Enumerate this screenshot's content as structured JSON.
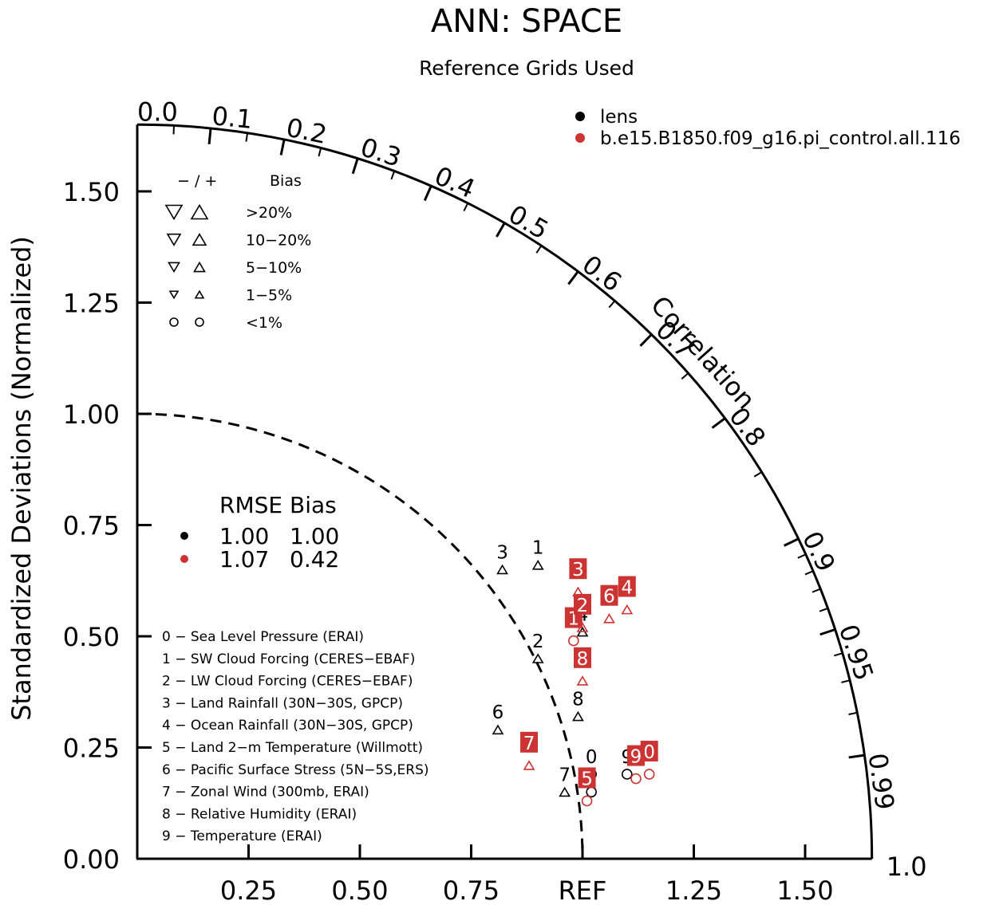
{
  "chart_data": {
    "type": "taylor-diagram",
    "title": "ANN: SPACE",
    "subtitle": "Reference Grids Used",
    "ylabel": "Standardized Deviations (Normalized)",
    "radial_label": "Correlation",
    "ref_label": "REF",
    "std_range": [
      0,
      1.65
    ],
    "y_ticks": [
      {
        "value": 0.0,
        "label": "0.00"
      },
      {
        "value": 0.25,
        "label": "0.25"
      },
      {
        "value": 0.5,
        "label": "0.50"
      },
      {
        "value": 0.75,
        "label": "0.75"
      },
      {
        "value": 1.0,
        "label": "1.00"
      },
      {
        "value": 1.25,
        "label": "1.25"
      },
      {
        "value": 1.5,
        "label": "1.50"
      }
    ],
    "x_ticks": [
      {
        "value": 0.25,
        "label": "0.25"
      },
      {
        "value": 0.5,
        "label": "0.50"
      },
      {
        "value": 0.75,
        "label": "0.75"
      },
      {
        "value": 1.25,
        "label": "1.25"
      },
      {
        "value": 1.5,
        "label": "1.50"
      }
    ],
    "corr_ticks": [
      {
        "value": 0.0,
        "label": "0.0"
      },
      {
        "value": 0.1,
        "label": "0.1"
      },
      {
        "value": 0.2,
        "label": "0.2"
      },
      {
        "value": 0.3,
        "label": "0.3"
      },
      {
        "value": 0.4,
        "label": "0.4"
      },
      {
        "value": 0.5,
        "label": "0.5"
      },
      {
        "value": 0.6,
        "label": "0.6"
      },
      {
        "value": 0.7,
        "label": "0.7"
      },
      {
        "value": 0.8,
        "label": "0.8"
      },
      {
        "value": 0.9,
        "label": "0.9"
      },
      {
        "value": 0.95,
        "label": "0.95"
      },
      {
        "value": 0.99,
        "label": "0.99"
      },
      {
        "value": 1.0,
        "label": "1.0"
      }
    ],
    "corr_minor_ticks": [
      0.05,
      0.15,
      0.25,
      0.35,
      0.45,
      0.55,
      0.65,
      0.75,
      0.85,
      0.91,
      0.92,
      0.93,
      0.94,
      0.96,
      0.97,
      0.98
    ],
    "ref_arc_std": 1.0,
    "series": [
      {
        "name": "lens",
        "color": "#000000",
        "points": [
          {
            "id": "0",
            "x": 1.02,
            "y": 0.19,
            "marker": "circle"
          },
          {
            "id": "1",
            "x": 0.9,
            "y": 0.66,
            "marker": "triangle-up"
          },
          {
            "id": "2",
            "x": 0.9,
            "y": 0.45,
            "marker": "triangle-up"
          },
          {
            "id": "3",
            "x": 0.82,
            "y": 0.65,
            "marker": "triangle-up"
          },
          {
            "id": "4",
            "x": 1.0,
            "y": 0.51,
            "marker": "triangle-up"
          },
          {
            "id": "5",
            "x": 1.02,
            "y": 0.15,
            "marker": "circle"
          },
          {
            "id": "6",
            "x": 0.81,
            "y": 0.29,
            "marker": "triangle-up"
          },
          {
            "id": "7",
            "x": 0.96,
            "y": 0.15,
            "marker": "triangle-up"
          },
          {
            "id": "8",
            "x": 0.99,
            "y": 0.32,
            "marker": "triangle-up"
          },
          {
            "id": "9",
            "x": 1.1,
            "y": 0.19,
            "marker": "circle"
          }
        ]
      },
      {
        "name": "b.e15.B1850.f09_g16.pi_control.all.116",
        "color": "#cc3333",
        "points": [
          {
            "id": "0",
            "x": 1.15,
            "y": 0.19,
            "marker": "circle"
          },
          {
            "id": "1",
            "x": 0.98,
            "y": 0.49,
            "marker": "circle"
          },
          {
            "id": "2",
            "x": 1.0,
            "y": 0.52,
            "marker": "triangle-up"
          },
          {
            "id": "3",
            "x": 0.99,
            "y": 0.6,
            "marker": "triangle-up"
          },
          {
            "id": "4",
            "x": 1.1,
            "y": 0.56,
            "marker": "triangle-up"
          },
          {
            "id": "5",
            "x": 1.01,
            "y": 0.13,
            "marker": "circle"
          },
          {
            "id": "6",
            "x": 1.06,
            "y": 0.54,
            "marker": "triangle-up"
          },
          {
            "id": "7",
            "x": 0.88,
            "y": 0.21,
            "marker": "triangle-up"
          },
          {
            "id": "8",
            "x": 1.0,
            "y": 0.4,
            "marker": "triangle-up"
          },
          {
            "id": "9",
            "x": 1.12,
            "y": 0.18,
            "marker": "circle"
          }
        ]
      }
    ]
  },
  "legend": {
    "items": [
      {
        "label": "lens",
        "color": "#000000"
      },
      {
        "label": "b.e15.B1850.f09_g16.pi_control.all.116",
        "color": "#cc3333"
      }
    ]
  },
  "bias_legend": {
    "header_signs": "− / +",
    "header_bias": "Bias",
    "rows": [
      {
        "label": ">20%",
        "size": "xl"
      },
      {
        "label": "10−20%",
        "size": "l"
      },
      {
        "label": "5−10%",
        "size": "m"
      },
      {
        "label": "1−5%",
        "size": "s"
      },
      {
        "label": "<1%",
        "size": "circle"
      }
    ]
  },
  "rmse_legend": {
    "header": "RMSE Bias",
    "rows": [
      {
        "rmse": "1.00",
        "bias": "1.00",
        "color": "#000000"
      },
      {
        "rmse": "1.07",
        "bias": "0.42",
        "color": "#cc3333"
      }
    ]
  },
  "variables": [
    "0 − Sea Level Pressure (ERAI)",
    "1 − SW Cloud Forcing (CERES−EBAF)",
    "2 − LW Cloud Forcing (CERES−EBAF)",
    "3 − Land Rainfall (30N−30S, GPCP)",
    "4 − Ocean Rainfall (30N−30S, GPCP)",
    "5 − Land 2−m Temperature (Willmott)",
    "6 − Pacific Surface Stress (5N−5S,ERS)",
    "7 − Zonal Wind (300mb, ERAI)",
    "8 − Relative Humidity (ERAI)",
    "9 − Temperature (ERAI)"
  ]
}
